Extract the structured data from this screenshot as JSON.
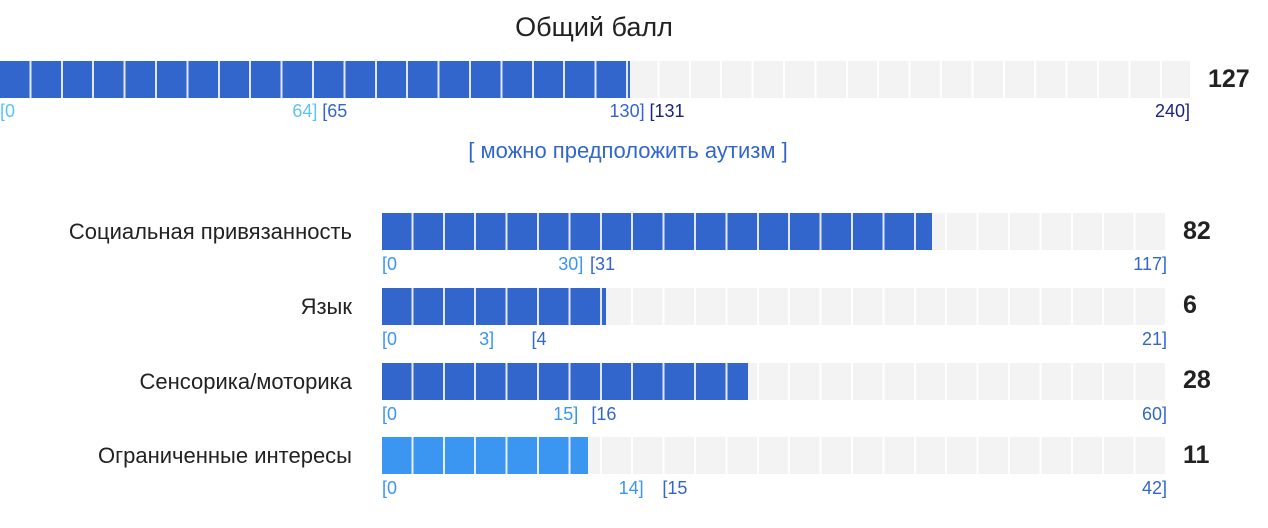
{
  "total": {
    "title": "Общий балл",
    "value": 127,
    "zones": [
      {
        "from": {
          "value": 0,
          "label": "[0"
        },
        "to": {
          "value": 64,
          "label": "64]"
        },
        "color": "#5cc4f0"
      },
      {
        "from": {
          "value": 65,
          "label": "[65"
        },
        "to": {
          "value": 130,
          "label": "130]"
        },
        "color": "#3366cc"
      },
      {
        "from": {
          "value": 131,
          "label": "[131"
        },
        "to": {
          "value": 240,
          "label": "240]"
        },
        "color": "#1a237e"
      }
    ],
    "verdict": "[ можно предположить аутизм ]"
  },
  "subscales": [
    {
      "name": "Социальная привязанность",
      "value": 82,
      "zones": [
        {
          "from": {
            "value": 0,
            "label": "[0"
          },
          "to": {
            "value": 30,
            "label": "30]"
          },
          "color": "#3a96f0"
        },
        {
          "from": {
            "value": 31,
            "label": "[31"
          },
          "to": {
            "value": 117,
            "label": "117]"
          },
          "color": "#3366cc"
        }
      ]
    },
    {
      "name": "Язык",
      "value": 6,
      "zones": [
        {
          "from": {
            "value": 0,
            "label": "[0"
          },
          "to": {
            "value": 3,
            "label": "3]"
          },
          "color": "#3a96f0"
        },
        {
          "from": {
            "value": 4,
            "label": "[4"
          },
          "to": {
            "value": 21,
            "label": "21]"
          },
          "color": "#3366cc"
        }
      ]
    },
    {
      "name": "Сенсорика/моторика",
      "value": 28,
      "zones": [
        {
          "from": {
            "value": 0,
            "label": "[0"
          },
          "to": {
            "value": 15,
            "label": "15]"
          },
          "color": "#3a96f0"
        },
        {
          "from": {
            "value": 16,
            "label": "[16"
          },
          "to": {
            "value": 60,
            "label": "60]"
          },
          "color": "#3366cc"
        }
      ]
    },
    {
      "name": "Ограниченные интересы",
      "value": 11,
      "zones": [
        {
          "from": {
            "value": 0,
            "label": "[0"
          },
          "to": {
            "value": 14,
            "label": "14]"
          },
          "color": "#3a96f0"
        },
        {
          "from": {
            "value": 15,
            "label": "[15"
          },
          "to": {
            "value": 42,
            "label": "42]"
          },
          "color": "#3366cc"
        }
      ]
    }
  ]
}
